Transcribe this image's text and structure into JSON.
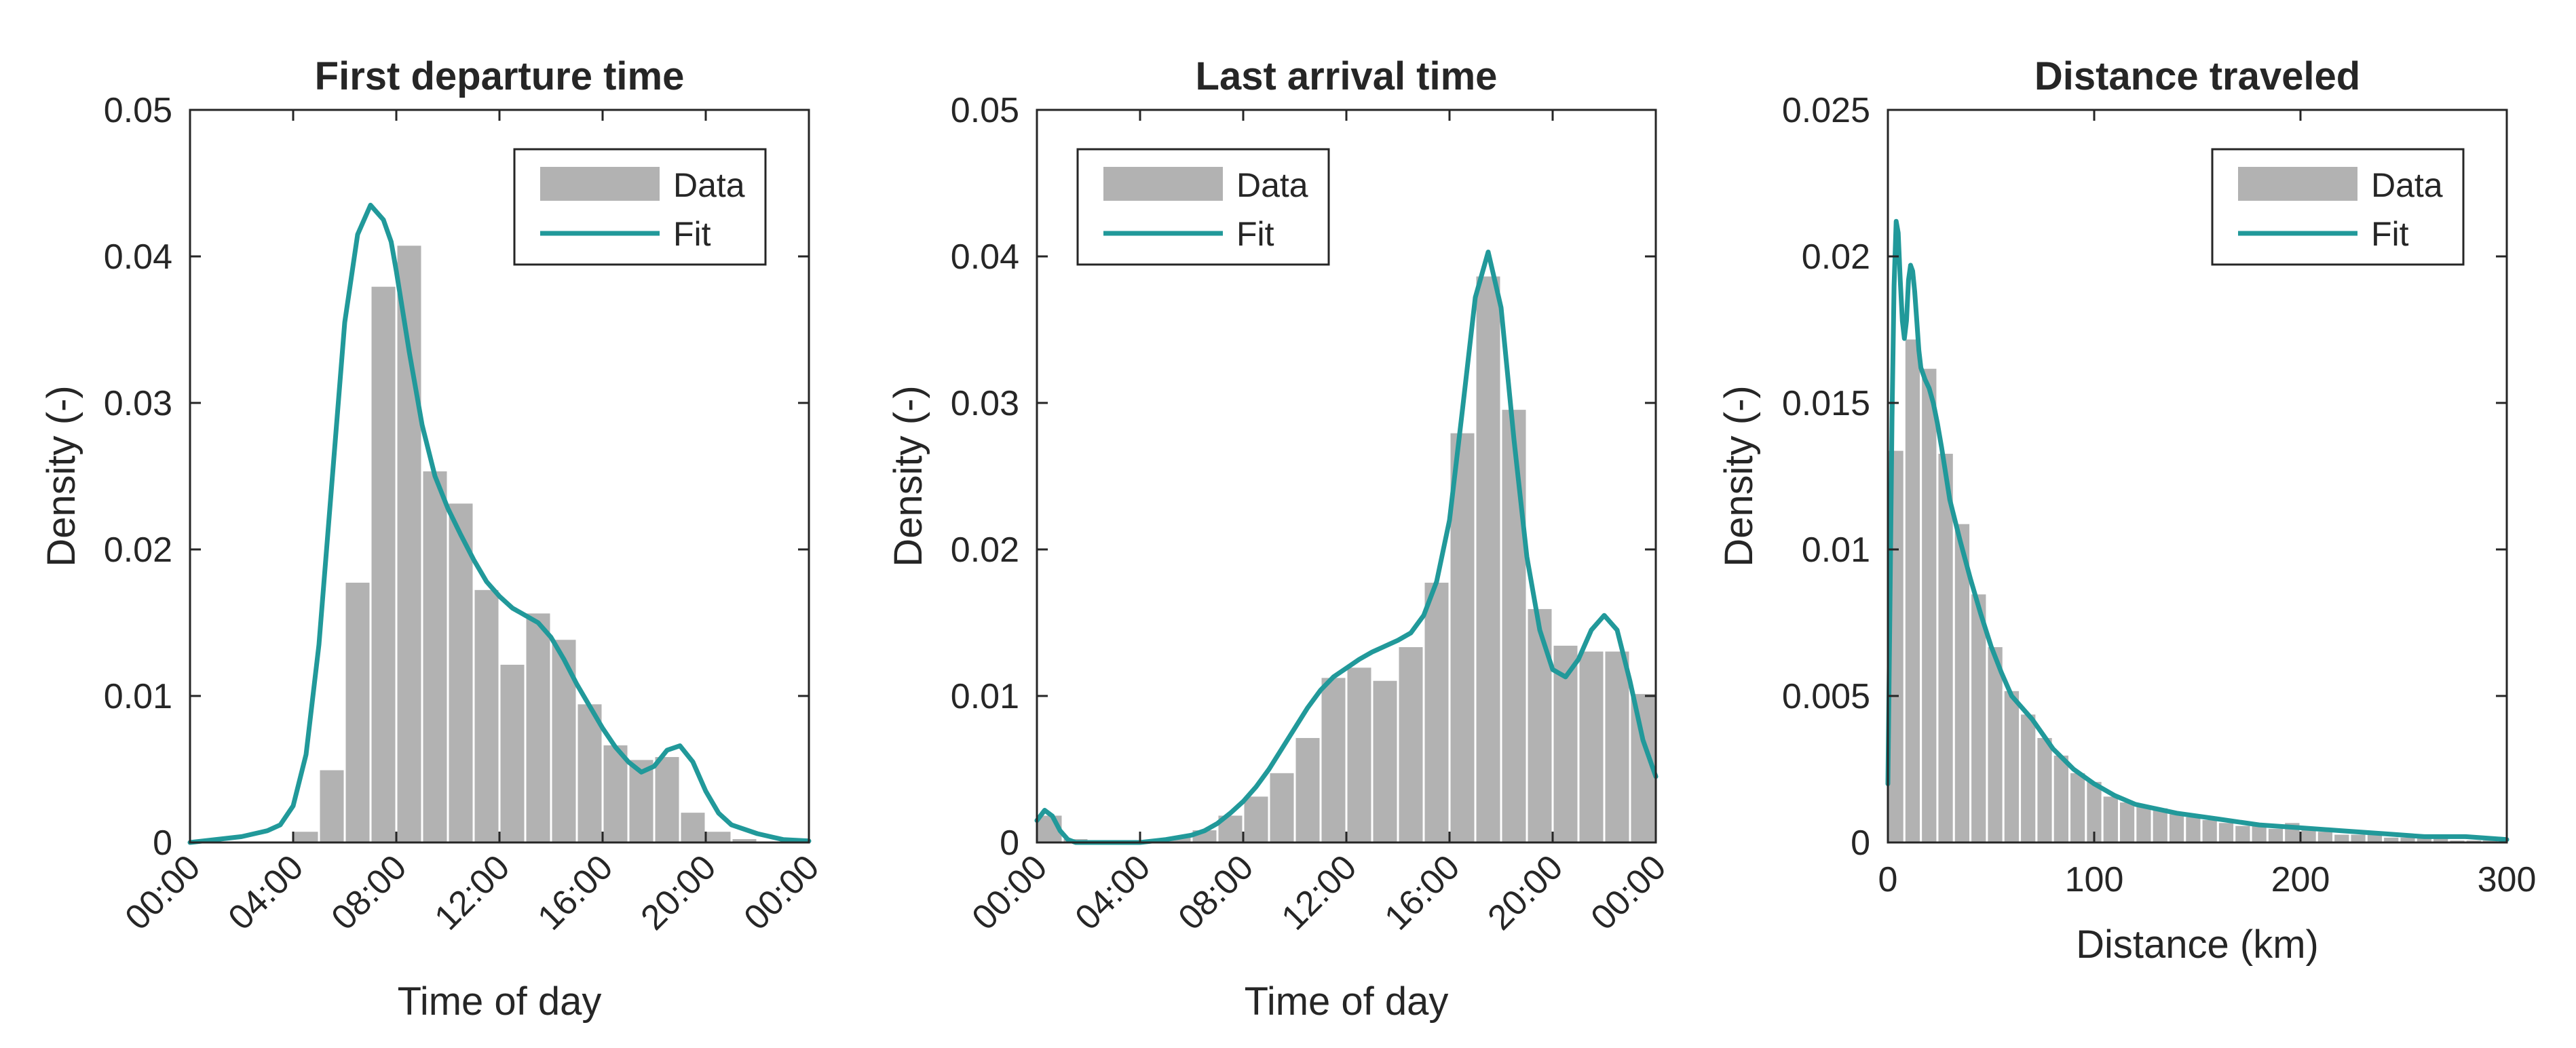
{
  "chart_data": [
    {
      "type": "bar",
      "title": "First departure time",
      "xlabel": "Time of day",
      "ylabel": "Density (-)",
      "xlim": [
        0,
        24
      ],
      "ylim": [
        0,
        0.05
      ],
      "xticks": [
        0,
        4,
        8,
        12,
        16,
        20,
        24
      ],
      "xticklabels": [
        "00:00",
        "04:00",
        "08:00",
        "12:00",
        "16:00",
        "20:00",
        "00:00"
      ],
      "xticks_rotated": true,
      "yticks": [
        0,
        0.01,
        0.02,
        0.03,
        0.04,
        0.05
      ],
      "yticklabels": [
        "0",
        "0.01",
        "0.02",
        "0.03",
        "0.04",
        "0.05"
      ],
      "bin_edges_start": 4,
      "bin_width": 1,
      "values": [
        0.0008,
        0.005,
        0.0178,
        0.038,
        0.0408,
        0.0254,
        0.0232,
        0.0173,
        0.0122,
        0.0157,
        0.0139,
        0.0095,
        0.0067,
        0.0057,
        0.0059,
        0.0021,
        0.0008,
        0.0003
      ],
      "fit": {
        "x": [
          0,
          2,
          3,
          3.5,
          4,
          4.5,
          5,
          5.5,
          6,
          6.5,
          7,
          7.5,
          7.8,
          8,
          8.5,
          9,
          9.5,
          10,
          10.5,
          11,
          11.5,
          12,
          12.5,
          13,
          13.5,
          14,
          14.5,
          15,
          15.5,
          16,
          16.5,
          17,
          17.5,
          18,
          18.5,
          19,
          19.5,
          20,
          20.5,
          21,
          22,
          23,
          24
        ],
        "y": [
          0,
          0.0004,
          0.0008,
          0.0012,
          0.0025,
          0.006,
          0.0135,
          0.0245,
          0.0355,
          0.0415,
          0.0435,
          0.0425,
          0.041,
          0.039,
          0.0335,
          0.0285,
          0.025,
          0.0228,
          0.021,
          0.0193,
          0.0178,
          0.0168,
          0.016,
          0.0155,
          0.015,
          0.014,
          0.0125,
          0.0108,
          0.0093,
          0.0078,
          0.0065,
          0.0055,
          0.0048,
          0.0052,
          0.0063,
          0.0066,
          0.0055,
          0.0035,
          0.002,
          0.0012,
          0.0006,
          0.0002,
          0.0001
        ]
      },
      "legend": [
        "Data",
        "Fit"
      ],
      "legend_position": "top-right"
    },
    {
      "type": "bar",
      "title": "Last arrival time",
      "xlabel": "Time of day",
      "ylabel": "Density (-)",
      "xlim": [
        0,
        24
      ],
      "ylim": [
        0,
        0.05
      ],
      "xticks": [
        0,
        4,
        8,
        12,
        16,
        20,
        24
      ],
      "xticklabels": [
        "00:00",
        "04:00",
        "08:00",
        "12:00",
        "16:00",
        "20:00",
        "00:00"
      ],
      "xticks_rotated": true,
      "yticks": [
        0,
        0.01,
        0.02,
        0.03,
        0.04,
        0.05
      ],
      "yticklabels": [
        "0",
        "0.01",
        "0.02",
        "0.03",
        "0.04",
        "0.05"
      ],
      "bin_edges_start": 0,
      "bin_width": 1,
      "values": [
        0.0019,
        0.0003,
        0.0001,
        0.0001,
        0.0002,
        0.0004,
        0.0009,
        0.0019,
        0.0032,
        0.0048,
        0.0072,
        0.0113,
        0.012,
        0.0111,
        0.0134,
        0.0178,
        0.028,
        0.0387,
        0.0296,
        0.016,
        0.0135,
        0.0131,
        0.0131,
        0.0102
      ],
      "fit": {
        "x": [
          0,
          0.3,
          0.6,
          0.9,
          1.2,
          1.5,
          2,
          3,
          4,
          5,
          6,
          6.5,
          7,
          7.5,
          8,
          8.5,
          9,
          9.5,
          10,
          10.5,
          11,
          11.5,
          12,
          12.5,
          13,
          13.5,
          14,
          14.5,
          15,
          15.5,
          16,
          16.5,
          17,
          17.5,
          18,
          18.5,
          19,
          19.5,
          20,
          20.5,
          21,
          21.5,
          22,
          22.5,
          23,
          23.5,
          24
        ],
        "y": [
          0.0015,
          0.0022,
          0.0018,
          0.0008,
          0.0002,
          0,
          0,
          0,
          0,
          0.0002,
          0.0005,
          0.0008,
          0.0013,
          0.002,
          0.0028,
          0.0038,
          0.005,
          0.0064,
          0.0078,
          0.0092,
          0.0104,
          0.0113,
          0.0119,
          0.0125,
          0.013,
          0.0134,
          0.0138,
          0.0143,
          0.0155,
          0.0178,
          0.022,
          0.0295,
          0.0372,
          0.0403,
          0.0365,
          0.0275,
          0.0195,
          0.0145,
          0.0118,
          0.0113,
          0.0125,
          0.0145,
          0.0155,
          0.0145,
          0.011,
          0.007,
          0.0045
        ]
      },
      "legend": [
        "Data",
        "Fit"
      ],
      "legend_position": "top-left"
    },
    {
      "type": "bar",
      "title": "Distance traveled",
      "xlabel": "Distance (km)",
      "ylabel": "Density (-)",
      "xlim": [
        0,
        300
      ],
      "ylim": [
        0,
        0.025
      ],
      "xticks": [
        0,
        100,
        200,
        300
      ],
      "xticklabels": [
        "0",
        "100",
        "200",
        "300"
      ],
      "xticks_rotated": false,
      "yticks": [
        0,
        0.005,
        0.01,
        0.015,
        0.02,
        0.025
      ],
      "yticklabels": [
        "0",
        "0.005",
        "0.01",
        "0.015",
        "0.02",
        "0.025"
      ],
      "bin_edges_start": 0,
      "bin_width": 8,
      "values": [
        0.0134,
        0.0172,
        0.0162,
        0.0133,
        0.0109,
        0.0085,
        0.0067,
        0.0052,
        0.0044,
        0.0036,
        0.003,
        0.0024,
        0.0021,
        0.0016,
        0.0014,
        0.0013,
        0.0012,
        0.001,
        0.0009,
        0.0008,
        0.0007,
        0.0006,
        0.0006,
        0.0005,
        0.0007,
        0.0005,
        0.0004,
        0.0003,
        0.0003,
        0.0003,
        0.0002,
        0.0002,
        0.0002,
        0.0002,
        0.0001,
        0.0001,
        0.0001,
        0.0001
      ],
      "fit": {
        "x": [
          0,
          1,
          2,
          3,
          4,
          5,
          6,
          7,
          8,
          9,
          10,
          11,
          12,
          13,
          14,
          15,
          16,
          17,
          18,
          20,
          22,
          24,
          26,
          28,
          30,
          35,
          40,
          45,
          50,
          55,
          60,
          65,
          70,
          75,
          80,
          90,
          100,
          110,
          120,
          140,
          160,
          180,
          200,
          220,
          240,
          260,
          280,
          300
        ],
        "y": [
          0.002,
          0.008,
          0.0145,
          0.019,
          0.0212,
          0.0208,
          0.0192,
          0.0178,
          0.0172,
          0.0178,
          0.0192,
          0.0197,
          0.0195,
          0.0188,
          0.0178,
          0.0168,
          0.0162,
          0.016,
          0.0158,
          0.0155,
          0.015,
          0.0143,
          0.0135,
          0.0126,
          0.0117,
          0.0103,
          0.009,
          0.0078,
          0.0067,
          0.0058,
          0.005,
          0.0046,
          0.0042,
          0.0037,
          0.0032,
          0.0025,
          0.002,
          0.0016,
          0.0013,
          0.001,
          0.0008,
          0.0006,
          0.0005,
          0.0004,
          0.0003,
          0.0002,
          0.0002,
          0.0001
        ]
      },
      "legend": [
        "Data",
        "Fit"
      ],
      "legend_position": "top-right"
    }
  ],
  "colors": {
    "bar": "#b2b2b2",
    "fit": "#21999a",
    "axis": "#262626"
  }
}
